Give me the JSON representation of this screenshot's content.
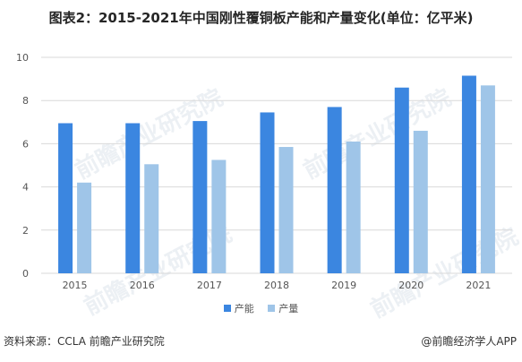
{
  "title": "图表2：2015-2021年中国刚性覆铜板产能和产量变化(单位：亿平米)",
  "footer": {
    "source": "资料来源：CCLA 前瞻产业研究院",
    "credit": "@前瞻经济学人APP"
  },
  "watermark": "前瞻产业研究院",
  "colors": {
    "capacity": "#3B86E0",
    "output": "#9FC5E8",
    "grid": "#D9D9D9",
    "axis_text": "#555555"
  },
  "chart_data": {
    "type": "bar",
    "title": "图表2：2015-2021年中国刚性覆铜板产能和产量变化(单位：亿平米)",
    "xlabel": "",
    "ylabel": "",
    "categories": [
      "2015",
      "2016",
      "2017",
      "2018",
      "2019",
      "2020",
      "2021"
    ],
    "ylim": [
      0,
      10
    ],
    "yticks": [
      "0",
      "2",
      "4",
      "6",
      "8",
      "10"
    ],
    "grid": true,
    "legend_position": "bottom-center",
    "series": [
      {
        "name": "产能",
        "values": [
          6.95,
          6.95,
          7.05,
          7.45,
          7.7,
          8.6,
          9.15
        ]
      },
      {
        "name": "产量",
        "values": [
          4.2,
          5.05,
          5.25,
          5.85,
          6.1,
          6.6,
          8.7
        ]
      }
    ]
  }
}
